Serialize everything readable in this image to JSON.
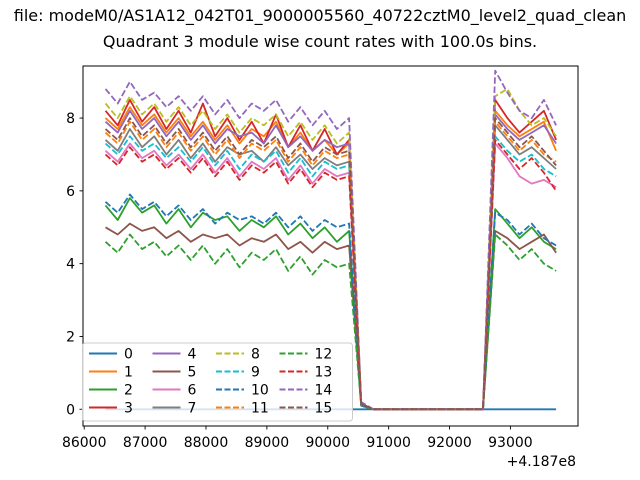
{
  "figure": {
    "suptitle": "file: modeM0/AS1A12_042T01_9000005560_40722cztM0_level2_quad_clean",
    "title": "Quadrant 3 module wise count rates with 100.0s bins."
  },
  "chart_data": {
    "type": "line",
    "suptitle": "file: modeM0/AS1A12_042T01_9000005560_40722cztM0_level2_quad_clean",
    "title": "Quadrant 3 module wise count rates with 100.0s bins.",
    "xlabel": "",
    "ylabel": "",
    "x_offset_label": "+4.187e8",
    "xlim": [
      85980,
      94110
    ],
    "ylim": [
      -0.46,
      9.43
    ],
    "xticks": [
      86000,
      87000,
      88000,
      89000,
      90000,
      91000,
      92000,
      93000
    ],
    "yticks": [
      0,
      2,
      4,
      6,
      8
    ],
    "grid": false,
    "legend": {
      "location": "lower left",
      "columns": 4,
      "order": "column-major"
    },
    "x_start": 86350,
    "x_step": 200,
    "dropout_interval": [
      90550,
      92550
    ],
    "series": [
      {
        "name": "0",
        "color": "#1f77b4",
        "dash": false,
        "values": [
          0,
          0,
          0,
          0,
          0,
          0,
          0,
          0,
          0,
          0,
          0,
          0,
          0,
          0,
          0,
          0,
          0,
          0,
          0,
          0,
          0,
          0,
          0,
          0,
          0,
          0,
          0,
          0,
          0,
          0,
          0,
          0,
          0,
          0,
          0,
          0,
          0,
          0
        ]
      },
      {
        "name": "1",
        "color": "#ff7f0e",
        "dash": false,
        "values": [
          8.0,
          7.7,
          8.3,
          7.8,
          8.1,
          7.6,
          8.0,
          7.5,
          7.9,
          7.4,
          7.8,
          7.3,
          7.7,
          7.5,
          7.9,
          7.2,
          7.6,
          7.1,
          7.4,
          7.0,
          7.3,
          0.15,
          0,
          0,
          0,
          0,
          0,
          0,
          0,
          0,
          0,
          0,
          8.2,
          7.8,
          7.5,
          7.7,
          7.9,
          7.1
        ]
      },
      {
        "name": "2",
        "color": "#2ca02c",
        "dash": false,
        "values": [
          5.6,
          5.2,
          5.8,
          5.4,
          5.6,
          5.1,
          5.5,
          5.0,
          5.4,
          5.2,
          5.3,
          4.9,
          5.2,
          5.0,
          5.3,
          4.8,
          5.1,
          4.7,
          5.0,
          4.6,
          4.9,
          0.1,
          0,
          0,
          0,
          0,
          0,
          0,
          0,
          0,
          0,
          0,
          5.5,
          5.1,
          4.7,
          5.0,
          4.6,
          4.4
        ]
      },
      {
        "name": "3",
        "color": "#d62728",
        "dash": false,
        "values": [
          8.2,
          7.8,
          8.5,
          7.9,
          8.3,
          7.7,
          8.2,
          7.6,
          8.4,
          7.5,
          8.0,
          7.4,
          7.9,
          7.3,
          8.1,
          7.2,
          7.8,
          7.1,
          7.7,
          7.0,
          7.4,
          0.15,
          0,
          0,
          0,
          0,
          0,
          0,
          0,
          0,
          0,
          0,
          8.5,
          8.0,
          7.6,
          7.9,
          8.2,
          7.4
        ]
      },
      {
        "name": "4",
        "color": "#9467bd",
        "dash": false,
        "values": [
          7.9,
          7.6,
          8.2,
          7.7,
          8.0,
          7.5,
          7.9,
          7.4,
          7.8,
          7.3,
          7.7,
          7.5,
          7.6,
          7.3,
          7.8,
          7.2,
          7.5,
          7.1,
          7.4,
          7.2,
          7.3,
          0.15,
          0,
          0,
          0,
          0,
          0,
          0,
          0,
          0,
          0,
          0,
          8.1,
          7.7,
          7.4,
          7.6,
          7.8,
          7.3
        ]
      },
      {
        "name": "5",
        "color": "#8c564b",
        "dash": false,
        "values": [
          5.0,
          4.8,
          5.1,
          4.9,
          5.0,
          4.7,
          4.9,
          4.6,
          4.8,
          4.7,
          4.8,
          4.5,
          4.7,
          4.6,
          4.8,
          4.4,
          4.6,
          4.3,
          4.6,
          4.4,
          4.5,
          0.1,
          0,
          0,
          0,
          0,
          0,
          0,
          0,
          0,
          0,
          0,
          4.9,
          4.7,
          4.4,
          4.6,
          4.8,
          4.3
        ]
      },
      {
        "name": "6",
        "color": "#e377c2",
        "dash": false,
        "values": [
          7.1,
          6.8,
          7.3,
          6.9,
          7.1,
          6.7,
          7.0,
          6.6,
          7.0,
          6.5,
          6.9,
          6.4,
          6.8,
          6.6,
          6.9,
          6.3,
          6.7,
          6.2,
          6.6,
          6.4,
          6.5,
          0.15,
          0,
          0,
          0,
          0,
          0,
          0,
          0,
          0,
          0,
          0,
          7.3,
          6.9,
          6.4,
          6.2,
          6.3,
          6.1
        ]
      },
      {
        "name": "7",
        "color": "#7f7f7f",
        "dash": false,
        "values": [
          7.4,
          7.1,
          7.7,
          7.2,
          7.5,
          7.0,
          7.4,
          6.9,
          7.3,
          6.8,
          7.2,
          7.0,
          7.1,
          6.8,
          7.2,
          6.7,
          7.0,
          6.6,
          6.9,
          6.7,
          6.8,
          0.15,
          0,
          0,
          0,
          0,
          0,
          0,
          0,
          0,
          0,
          0,
          7.8,
          7.4,
          7.0,
          7.2,
          6.9,
          6.6
        ]
      },
      {
        "name": "8",
        "color": "#bcbd22",
        "dash": true,
        "values": [
          8.4,
          8.0,
          8.6,
          8.1,
          8.4,
          7.9,
          8.3,
          7.8,
          8.2,
          7.7,
          8.1,
          7.6,
          8.0,
          7.8,
          8.1,
          7.5,
          7.9,
          7.4,
          7.8,
          7.3,
          7.6,
          0.15,
          0,
          0,
          0,
          0,
          0,
          0,
          0,
          0,
          0,
          0,
          8.6,
          8.8,
          8.2,
          7.8,
          8.0,
          7.5
        ]
      },
      {
        "name": "9",
        "color": "#17becf",
        "dash": true,
        "values": [
          7.3,
          7.0,
          7.5,
          7.1,
          7.3,
          6.9,
          7.2,
          6.8,
          7.2,
          6.7,
          7.1,
          6.6,
          7.0,
          6.8,
          7.1,
          6.5,
          6.9,
          6.4,
          6.8,
          6.6,
          6.7,
          0.15,
          0,
          0,
          0,
          0,
          0,
          0,
          0,
          0,
          0,
          0,
          7.5,
          7.1,
          6.8,
          7.0,
          6.6,
          6.4
        ]
      },
      {
        "name": "10",
        "color": "#1f77b4",
        "dash": true,
        "values": [
          5.7,
          5.4,
          5.9,
          5.5,
          5.7,
          5.3,
          5.6,
          5.2,
          5.5,
          5.1,
          5.4,
          5.2,
          5.3,
          5.1,
          5.4,
          5.0,
          5.3,
          4.9,
          5.2,
          5.0,
          5.1,
          0.1,
          0,
          0,
          0,
          0,
          0,
          0,
          0,
          0,
          0,
          0,
          5.4,
          5.2,
          4.8,
          5.1,
          4.7,
          4.5
        ]
      },
      {
        "name": "11",
        "color": "#ff7f0e",
        "dash": true,
        "values": [
          7.6,
          7.3,
          7.9,
          7.4,
          7.7,
          7.2,
          7.6,
          7.1,
          7.5,
          7.0,
          7.4,
          6.9,
          7.3,
          7.1,
          7.4,
          6.8,
          7.2,
          6.7,
          7.1,
          6.9,
          7.0,
          0.15,
          0,
          0,
          0,
          0,
          0,
          0,
          0,
          0,
          0,
          0,
          7.9,
          7.5,
          7.1,
          7.4,
          7.0,
          6.8
        ]
      },
      {
        "name": "12",
        "color": "#2ca02c",
        "dash": true,
        "values": [
          4.6,
          4.3,
          4.8,
          4.4,
          4.6,
          4.2,
          4.5,
          4.1,
          4.5,
          4.0,
          4.4,
          3.9,
          4.3,
          4.1,
          4.4,
          3.8,
          4.2,
          3.7,
          4.1,
          3.9,
          4.0,
          0.1,
          0,
          0,
          0,
          0,
          0,
          0,
          0,
          0,
          0,
          0,
          4.8,
          4.5,
          4.1,
          4.4,
          4.0,
          3.8
        ]
      },
      {
        "name": "13",
        "color": "#d62728",
        "dash": true,
        "values": [
          7.0,
          6.7,
          7.2,
          6.8,
          7.0,
          6.6,
          6.9,
          6.5,
          6.9,
          6.4,
          6.8,
          6.3,
          6.7,
          6.5,
          6.8,
          6.2,
          6.6,
          6.1,
          6.5,
          6.3,
          6.4,
          0.15,
          0,
          0,
          0,
          0,
          0,
          0,
          0,
          0,
          0,
          0,
          7.4,
          7.0,
          6.6,
          6.9,
          6.5,
          6.0
        ]
      },
      {
        "name": "14",
        "color": "#9467bd",
        "dash": true,
        "values": [
          8.8,
          8.4,
          9.0,
          8.5,
          8.7,
          8.3,
          8.6,
          8.2,
          8.6,
          8.1,
          8.5,
          8.0,
          8.4,
          8.2,
          8.5,
          7.9,
          8.3,
          7.8,
          8.2,
          7.7,
          8.0,
          0.2,
          0,
          0,
          0,
          0,
          0,
          0,
          0,
          0,
          0,
          0,
          9.3,
          8.7,
          8.2,
          8.0,
          8.5,
          7.8
        ]
      },
      {
        "name": "15",
        "color": "#8c564b",
        "dash": true,
        "values": [
          7.7,
          7.4,
          8.0,
          7.5,
          7.8,
          7.3,
          7.7,
          7.2,
          7.6,
          7.1,
          7.5,
          7.0,
          7.4,
          7.2,
          7.5,
          6.9,
          7.3,
          6.8,
          7.2,
          7.0,
          7.1,
          0.15,
          0,
          0,
          0,
          0,
          0,
          0,
          0,
          0,
          0,
          0,
          8.0,
          7.6,
          7.2,
          7.5,
          7.1,
          6.7
        ]
      }
    ]
  }
}
